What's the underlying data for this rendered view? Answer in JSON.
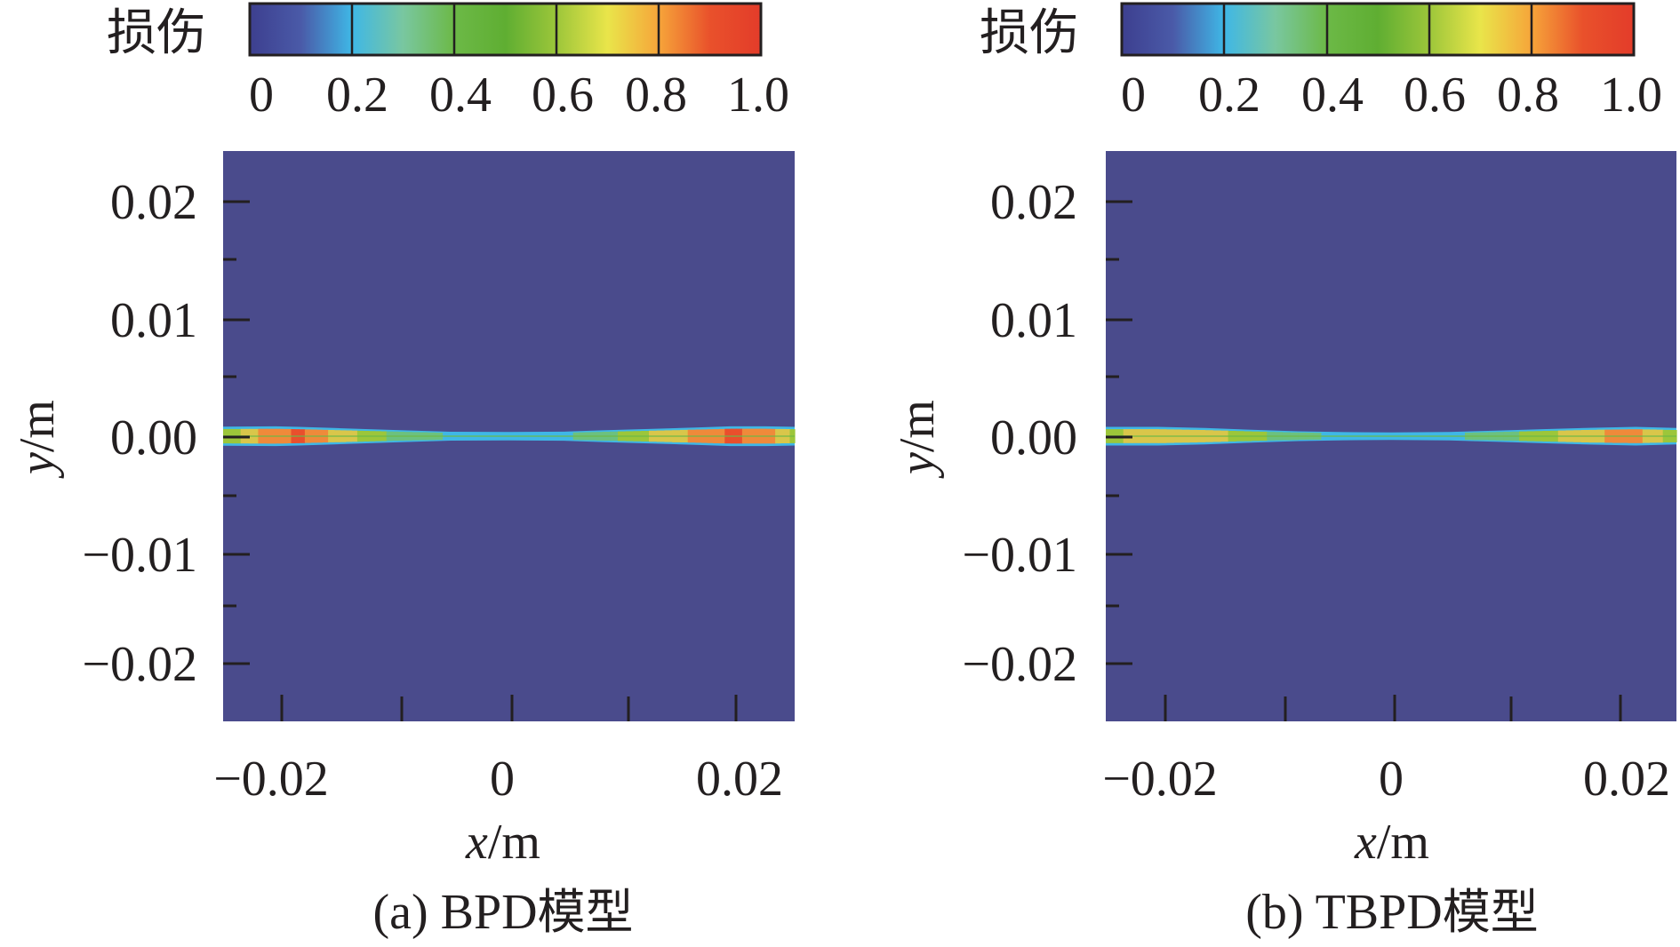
{
  "colors": {
    "background_field": "#4a4b8c",
    "frame": "#231f20",
    "colormap": [
      "#3d3f8f",
      "#4a5aa8",
      "#3fb7e6",
      "#79c7a0",
      "#6cb947",
      "#5fae32",
      "#9cc63a",
      "#e9e54a",
      "#f6a53a",
      "#e9512b",
      "#e33c2a"
    ],
    "damage_band": [
      "#3fb7e6",
      "#6cc17f",
      "#9cc63a",
      "#d9c64a",
      "#ef8a3a",
      "#e94f2c"
    ]
  },
  "chart_data": [
    {
      "id": "a",
      "type": "heatmap",
      "caption_prefix": "(a) ",
      "model": "BPD",
      "caption_suffix": "模型",
      "colorbar": {
        "label": "损伤",
        "range": [
          0,
          1.0
        ],
        "tick_values": [
          0,
          0.2,
          0.4,
          0.6,
          0.8,
          1.0
        ],
        "tick_labels": [
          "0",
          "0.2",
          "0.4",
          "0.6",
          "0.8",
          "1.0"
        ]
      },
      "xlabel_var": "x",
      "xlabel_unit": "/m",
      "ylabel_var": "y",
      "ylabel_unit": "/m",
      "xlim": [
        -0.0245,
        0.0245
      ],
      "ylim": [
        -0.0245,
        0.0245
      ],
      "x_ticks": [
        -0.02,
        0,
        0.02
      ],
      "x_tick_labels": [
        "−0.02",
        "0",
        "0.02"
      ],
      "x_minor_ticks": [
        -0.02,
        -0.01,
        0,
        0.01,
        0.02
      ],
      "y_ticks": [
        0.02,
        0.01,
        0.0,
        -0.01,
        -0.02
      ],
      "y_tick_labels": [
        "0.02",
        "0.01",
        "0.00",
        "−0.01",
        "−0.02"
      ],
      "y_minor_ticks": [
        0.015,
        0.005,
        -0.005,
        -0.015
      ],
      "background_damage": 0.0,
      "crack": {
        "y_center": 0.0,
        "profile": [
          {
            "x": -0.0245,
            "half_width": 0.00082,
            "damage": 0.5
          },
          {
            "x": -0.02,
            "half_width": 0.00085,
            "damage": 0.82
          },
          {
            "x": -0.018,
            "half_width": 0.0008,
            "damage": 0.9
          },
          {
            "x": -0.015,
            "half_width": 0.0007,
            "damage": 0.7
          },
          {
            "x": -0.012,
            "half_width": 0.0006,
            "damage": 0.55
          },
          {
            "x": -0.009,
            "half_width": 0.0005,
            "damage": 0.38
          },
          {
            "x": -0.005,
            "half_width": 0.00038,
            "damage": 0.3
          },
          {
            "x": 0.0,
            "half_width": 0.00036,
            "damage": 0.28
          },
          {
            "x": 0.005,
            "half_width": 0.0004,
            "damage": 0.3
          },
          {
            "x": 0.008,
            "half_width": 0.0005,
            "damage": 0.38
          },
          {
            "x": 0.012,
            "half_width": 0.00062,
            "damage": 0.6
          },
          {
            "x": 0.016,
            "half_width": 0.00075,
            "damage": 0.78
          },
          {
            "x": 0.019,
            "half_width": 0.00085,
            "damage": 0.9
          },
          {
            "x": 0.022,
            "half_width": 0.00085,
            "damage": 0.85
          },
          {
            "x": 0.0245,
            "half_width": 0.0008,
            "damage": 0.55
          }
        ]
      }
    },
    {
      "id": "b",
      "type": "heatmap",
      "caption_prefix": "(b) ",
      "model": "TBPD",
      "caption_suffix": "模型",
      "colorbar": {
        "label": "损伤",
        "range": [
          0,
          1.0
        ],
        "tick_values": [
          0,
          0.2,
          0.4,
          0.6,
          0.8,
          1.0
        ],
        "tick_labels": [
          "0",
          "0.2",
          "0.4",
          "0.6",
          "0.8",
          "1.0"
        ]
      },
      "xlabel_var": "x",
      "xlabel_unit": "/m",
      "ylabel_var": "y",
      "ylabel_unit": "/m",
      "xlim": [
        -0.0245,
        0.0245
      ],
      "ylim": [
        -0.0245,
        0.0245
      ],
      "x_ticks": [
        -0.02,
        0,
        0.02
      ],
      "x_tick_labels": [
        "−0.02",
        "0",
        "0.02"
      ],
      "x_minor_ticks": [
        -0.02,
        -0.01,
        0,
        0.01,
        0.02
      ],
      "y_ticks": [
        0.02,
        0.01,
        0.0,
        -0.01,
        -0.02
      ],
      "y_tick_labels": [
        "0.02",
        "0.01",
        "0.00",
        "−0.01",
        "−0.02"
      ],
      "y_minor_ticks": [
        0.015,
        0.005,
        -0.005,
        -0.015
      ],
      "background_damage": 0.0,
      "crack": {
        "y_center": 0.0,
        "profile": [
          {
            "x": -0.0245,
            "half_width": 0.0008,
            "damage": 0.55
          },
          {
            "x": -0.02,
            "half_width": 0.0008,
            "damage": 0.72
          },
          {
            "x": -0.016,
            "half_width": 0.0007,
            "damage": 0.7
          },
          {
            "x": -0.012,
            "half_width": 0.00055,
            "damage": 0.5
          },
          {
            "x": -0.008,
            "half_width": 0.00042,
            "damage": 0.35
          },
          {
            "x": -0.004,
            "half_width": 0.00035,
            "damage": 0.28
          },
          {
            "x": 0.0,
            "half_width": 0.00032,
            "damage": 0.25
          },
          {
            "x": 0.005,
            "half_width": 0.00036,
            "damage": 0.28
          },
          {
            "x": 0.009,
            "half_width": 0.00048,
            "damage": 0.38
          },
          {
            "x": 0.013,
            "half_width": 0.0006,
            "damage": 0.55
          },
          {
            "x": 0.017,
            "half_width": 0.00072,
            "damage": 0.72
          },
          {
            "x": 0.021,
            "half_width": 0.0008,
            "damage": 0.78
          },
          {
            "x": 0.0245,
            "half_width": 0.0007,
            "damage": 0.5
          }
        ]
      }
    }
  ]
}
